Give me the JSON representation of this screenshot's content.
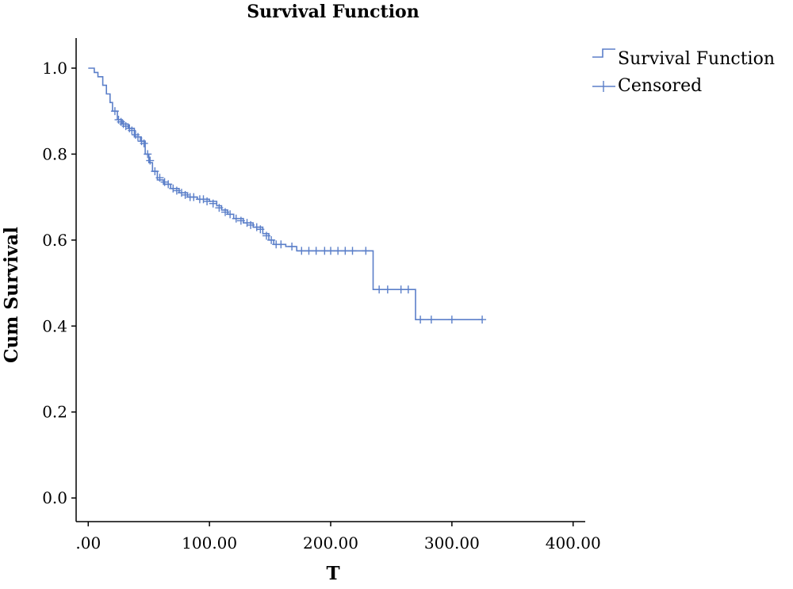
{
  "chart_data": {
    "type": "line",
    "title": "Survival Function",
    "xlabel": "T",
    "ylabel": "Cum Survival",
    "xlim": [
      -10,
      410
    ],
    "ylim": [
      -0.055,
      1.07
    ],
    "x_ticks": [
      0,
      100,
      200,
      300,
      400
    ],
    "x_tick_labels": [
      ".00",
      "100.00",
      "200.00",
      "300.00",
      "400.00"
    ],
    "y_ticks": [
      0.0,
      0.2,
      0.4,
      0.6,
      0.8,
      1.0
    ],
    "y_tick_labels": [
      "0.0",
      "0.2",
      "0.4",
      "0.6",
      "0.8",
      "1.0"
    ],
    "grid": false,
    "legend_position": "top-right",
    "color": "#5b7fc9",
    "series": [
      {
        "name": "Survival Function",
        "step": true,
        "points": [
          [
            0,
            1.0
          ],
          [
            5,
            0.99
          ],
          [
            8,
            0.98
          ],
          [
            12,
            0.96
          ],
          [
            15,
            0.94
          ],
          [
            18,
            0.92
          ],
          [
            20,
            0.9
          ],
          [
            24,
            0.88
          ],
          [
            28,
            0.87
          ],
          [
            33,
            0.86
          ],
          [
            38,
            0.84
          ],
          [
            43,
            0.83
          ],
          [
            47,
            0.8
          ],
          [
            50,
            0.78
          ],
          [
            53,
            0.76
          ],
          [
            57,
            0.74
          ],
          [
            62,
            0.73
          ],
          [
            68,
            0.72
          ],
          [
            75,
            0.71
          ],
          [
            82,
            0.7
          ],
          [
            90,
            0.695
          ],
          [
            100,
            0.69
          ],
          [
            106,
            0.68
          ],
          [
            110,
            0.67
          ],
          [
            115,
            0.66
          ],
          [
            120,
            0.65
          ],
          [
            128,
            0.64
          ],
          [
            136,
            0.63
          ],
          [
            144,
            0.615
          ],
          [
            149,
            0.6
          ],
          [
            153,
            0.59
          ],
          [
            163,
            0.585
          ],
          [
            172,
            0.575
          ],
          [
            233,
            0.575
          ],
          [
            235,
            0.485
          ],
          [
            268,
            0.485
          ],
          [
            270,
            0.415
          ],
          [
            325,
            0.415
          ]
        ]
      },
      {
        "name": "Censored",
        "marker": "plus",
        "points": [
          [
            22,
            0.9
          ],
          [
            25,
            0.88
          ],
          [
            27,
            0.875
          ],
          [
            29,
            0.87
          ],
          [
            31,
            0.865
          ],
          [
            34,
            0.86
          ],
          [
            36,
            0.855
          ],
          [
            39,
            0.845
          ],
          [
            41,
            0.84
          ],
          [
            44,
            0.83
          ],
          [
            46,
            0.825
          ],
          [
            49,
            0.8
          ],
          [
            51,
            0.785
          ],
          [
            55,
            0.76
          ],
          [
            59,
            0.745
          ],
          [
            63,
            0.735
          ],
          [
            66,
            0.73
          ],
          [
            70,
            0.72
          ],
          [
            73,
            0.715
          ],
          [
            77,
            0.71
          ],
          [
            80,
            0.705
          ],
          [
            84,
            0.7
          ],
          [
            87,
            0.7
          ],
          [
            92,
            0.695
          ],
          [
            95,
            0.695
          ],
          [
            98,
            0.69
          ],
          [
            103,
            0.685
          ],
          [
            108,
            0.675
          ],
          [
            113,
            0.665
          ],
          [
            117,
            0.66
          ],
          [
            122,
            0.65
          ],
          [
            126,
            0.645
          ],
          [
            131,
            0.64
          ],
          [
            134,
            0.635
          ],
          [
            139,
            0.63
          ],
          [
            142,
            0.625
          ],
          [
            147,
            0.61
          ],
          [
            151,
            0.6
          ],
          [
            155,
            0.59
          ],
          [
            159,
            0.59
          ],
          [
            168,
            0.585
          ],
          [
            176,
            0.575
          ],
          [
            182,
            0.575
          ],
          [
            188,
            0.575
          ],
          [
            195,
            0.575
          ],
          [
            200,
            0.575
          ],
          [
            206,
            0.575
          ],
          [
            212,
            0.575
          ],
          [
            218,
            0.575
          ],
          [
            229,
            0.575
          ],
          [
            240,
            0.485
          ],
          [
            247,
            0.485
          ],
          [
            258,
            0.485
          ],
          [
            264,
            0.485
          ],
          [
            274,
            0.415
          ],
          [
            283,
            0.415
          ],
          [
            300,
            0.415
          ],
          [
            325,
            0.415
          ]
        ]
      }
    ]
  }
}
